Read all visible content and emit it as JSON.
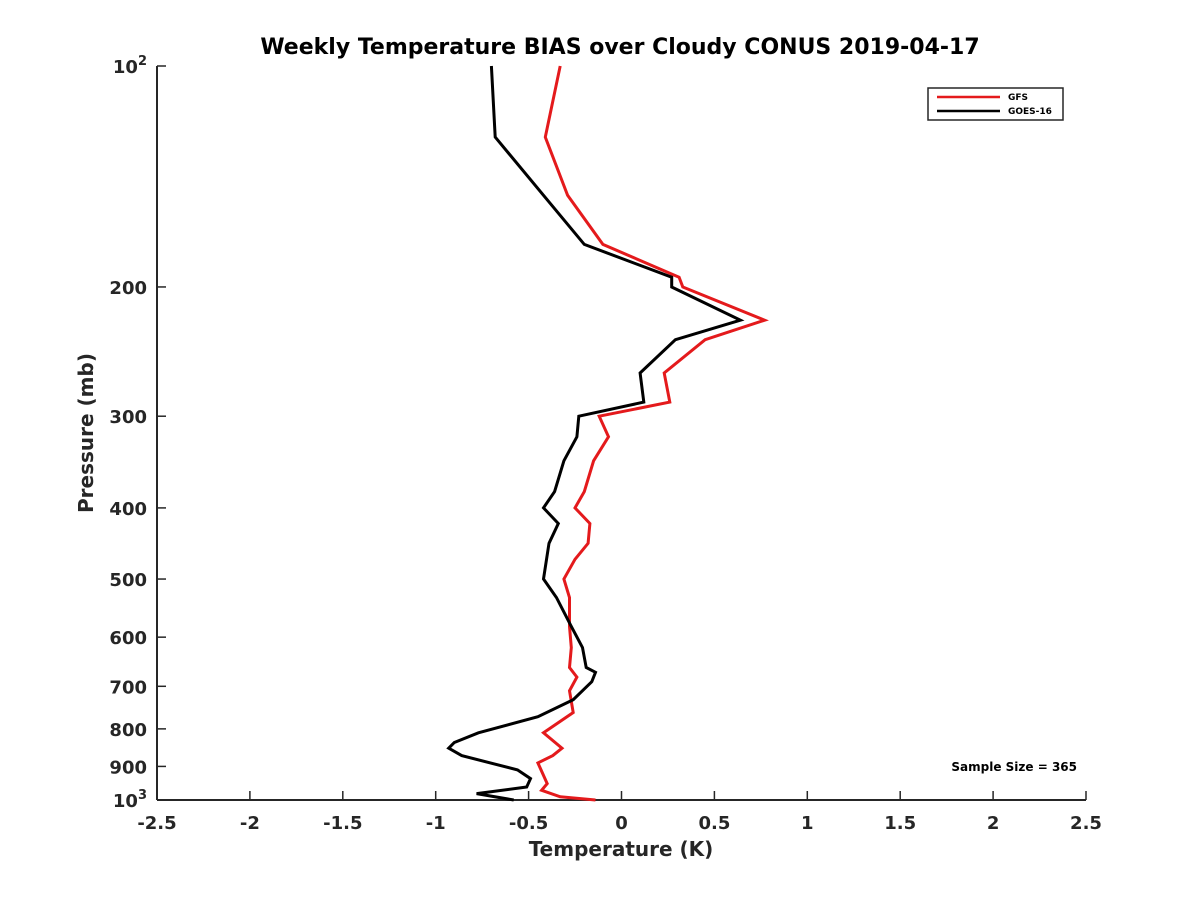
{
  "chart_data": {
    "type": "line",
    "title": "Weekly Temperature BIAS over Cloudy CONUS 2019-04-17",
    "xlabel": "Temperature (K)",
    "ylabel": "Pressure (mb)",
    "xlim": [
      -2.5,
      2.5
    ],
    "ylim": [
      1000,
      100
    ],
    "y_scale": "log",
    "y_reversed": true,
    "grid": false,
    "legend_position": "top-right",
    "x_ticks": [
      -2.5,
      -2,
      -1.5,
      -1,
      -0.5,
      0,
      0.5,
      1,
      1.5,
      2,
      2.5
    ],
    "x_tick_labels": [
      "-2.5",
      "-2",
      "-1.5",
      "-1",
      "-0.5",
      "0",
      "0.5",
      "1",
      "1.5",
      "2",
      "2.5"
    ],
    "y_ticks": [
      {
        "value": 100,
        "label": "10",
        "sup": "2"
      },
      {
        "value": 200,
        "label": "200",
        "sup": ""
      },
      {
        "value": 300,
        "label": "300",
        "sup": ""
      },
      {
        "value": 400,
        "label": "400",
        "sup": ""
      },
      {
        "value": 500,
        "label": "500",
        "sup": ""
      },
      {
        "value": 600,
        "label": "600",
        "sup": ""
      },
      {
        "value": 700,
        "label": "700",
        "sup": ""
      },
      {
        "value": 800,
        "label": "800",
        "sup": ""
      },
      {
        "value": 900,
        "label": "900",
        "sup": ""
      },
      {
        "value": 1000,
        "label": "10",
        "sup": "3"
      }
    ],
    "annotation": "Sample Size = 365",
    "series": [
      {
        "name": "GFS",
        "color": "#e41a1c",
        "points": [
          [
            -0.33,
            100
          ],
          [
            -0.41,
            125
          ],
          [
            -0.29,
            150
          ],
          [
            -0.1,
            175
          ],
          [
            0.31,
            194
          ],
          [
            0.33,
            200
          ],
          [
            0.77,
            222
          ],
          [
            0.45,
            236
          ],
          [
            0.23,
            262
          ],
          [
            0.26,
            287
          ],
          [
            -0.12,
            300
          ],
          [
            -0.07,
            320
          ],
          [
            -0.15,
            345
          ],
          [
            -0.2,
            380
          ],
          [
            -0.25,
            400
          ],
          [
            -0.17,
            420
          ],
          [
            -0.18,
            447
          ],
          [
            -0.25,
            470
          ],
          [
            -0.31,
            500
          ],
          [
            -0.28,
            530
          ],
          [
            -0.28,
            580
          ],
          [
            -0.27,
            620
          ],
          [
            -0.28,
            660
          ],
          [
            -0.24,
            680
          ],
          [
            -0.28,
            710
          ],
          [
            -0.26,
            760
          ],
          [
            -0.42,
            810
          ],
          [
            -0.32,
            850
          ],
          [
            -0.37,
            870
          ],
          [
            -0.45,
            890
          ],
          [
            -0.4,
            950
          ],
          [
            -0.43,
            970
          ],
          [
            -0.33,
            990
          ],
          [
            -0.14,
            1000
          ]
        ]
      },
      {
        "name": "GOES-16",
        "color": "#000000",
        "points": [
          [
            -0.7,
            100
          ],
          [
            -0.68,
            125
          ],
          [
            -0.42,
            150
          ],
          [
            -0.2,
            175
          ],
          [
            0.27,
            194
          ],
          [
            0.27,
            200
          ],
          [
            0.64,
            222
          ],
          [
            0.29,
            236
          ],
          [
            0.1,
            262
          ],
          [
            0.12,
            287
          ],
          [
            -0.23,
            300
          ],
          [
            -0.24,
            320
          ],
          [
            -0.31,
            345
          ],
          [
            -0.36,
            380
          ],
          [
            -0.42,
            400
          ],
          [
            -0.34,
            420
          ],
          [
            -0.39,
            447
          ],
          [
            -0.42,
            500
          ],
          [
            -0.35,
            530
          ],
          [
            -0.27,
            580
          ],
          [
            -0.21,
            620
          ],
          [
            -0.19,
            660
          ],
          [
            -0.14,
            670
          ],
          [
            -0.16,
            690
          ],
          [
            -0.26,
            730
          ],
          [
            -0.45,
            770
          ],
          [
            -0.77,
            810
          ],
          [
            -0.9,
            835
          ],
          [
            -0.93,
            850
          ],
          [
            -0.86,
            870
          ],
          [
            -0.56,
            910
          ],
          [
            -0.49,
            935
          ],
          [
            -0.51,
            960
          ],
          [
            -0.78,
            980
          ],
          [
            -0.58,
            1000
          ]
        ]
      }
    ]
  }
}
